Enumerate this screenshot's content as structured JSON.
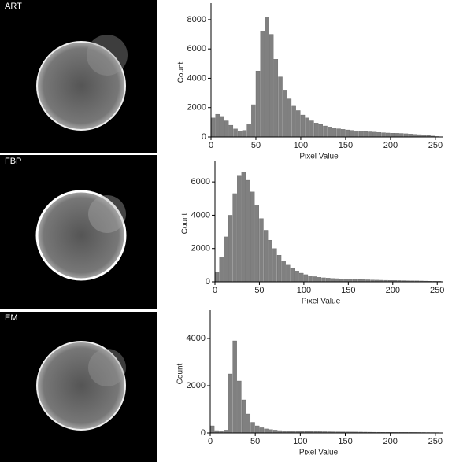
{
  "chart_data": [
    {
      "type": "histogram",
      "title": "ART",
      "xlabel": "Pixel Value",
      "ylabel": "Count",
      "color": "#808080",
      "bins": [
        0,
        5,
        10,
        15,
        20,
        25,
        30,
        35,
        40,
        45,
        50,
        55,
        60,
        65,
        70,
        75,
        80,
        85,
        90,
        95,
        100,
        105,
        110,
        115,
        120,
        125,
        130,
        135,
        140,
        145,
        150,
        155,
        160,
        165,
        170,
        175,
        180,
        185,
        190,
        195,
        200,
        205,
        210,
        215,
        220,
        225,
        230,
        235,
        240,
        245,
        250,
        255
      ],
      "values": [
        1300,
        1550,
        1400,
        1100,
        800,
        550,
        400,
        450,
        900,
        2200,
        4500,
        7200,
        8200,
        7000,
        5300,
        4100,
        3200,
        2600,
        2100,
        1800,
        1500,
        1300,
        1100,
        950,
        850,
        750,
        680,
        620,
        560,
        520,
        480,
        450,
        420,
        390,
        370,
        350,
        330,
        310,
        290,
        270,
        260,
        250,
        240,
        220,
        200,
        180,
        160,
        130,
        100,
        60,
        30
      ],
      "xlim": [
        0,
        258
      ],
      "xticks": [
        0,
        50,
        100,
        150,
        200,
        250
      ],
      "ylim": [
        0,
        8800
      ],
      "yticks": [
        0,
        2000,
        4000,
        6000,
        8000
      ]
    },
    {
      "type": "histogram",
      "title": "FBP",
      "xlabel": "Pixel Value",
      "ylabel": "Count",
      "color": "#808080",
      "bins": [
        0,
        5,
        10,
        15,
        20,
        25,
        30,
        35,
        40,
        45,
        50,
        55,
        60,
        65,
        70,
        75,
        80,
        85,
        90,
        95,
        100,
        105,
        110,
        115,
        120,
        125,
        130,
        135,
        140,
        145,
        150,
        155,
        160,
        165,
        170,
        175,
        180,
        185,
        190,
        195,
        200,
        205,
        210,
        215,
        220,
        225,
        230,
        235,
        240,
        245,
        250,
        255
      ],
      "values": [
        600,
        1500,
        2700,
        4000,
        5300,
        6400,
        6600,
        6100,
        5400,
        4600,
        3800,
        3100,
        2500,
        2000,
        1600,
        1250,
        1000,
        800,
        650,
        520,
        430,
        360,
        310,
        270,
        240,
        220,
        200,
        190,
        180,
        170,
        160,
        150,
        140,
        130,
        120,
        110,
        100,
        95,
        90,
        85,
        80,
        75,
        70,
        65,
        60,
        55,
        50,
        45,
        40,
        35,
        30
      ],
      "xlim": [
        0,
        256
      ],
      "xticks": [
        0,
        50,
        100,
        150,
        200,
        250
      ],
      "ylim": [
        0,
        7000
      ],
      "yticks": [
        0,
        2000,
        4000,
        6000
      ]
    },
    {
      "type": "histogram",
      "title": "EM",
      "xlabel": "Pixel Value",
      "ylabel": "Count",
      "color": "#808080",
      "bins": [
        0,
        5,
        10,
        15,
        20,
        25,
        30,
        35,
        40,
        45,
        50,
        55,
        60,
        65,
        70,
        75,
        80,
        85,
        90,
        95,
        100,
        105,
        110,
        115,
        120,
        125,
        130,
        135,
        140,
        145,
        150,
        155,
        160,
        165,
        170,
        175,
        180,
        185,
        190,
        195,
        200,
        205,
        210,
        215,
        220,
        225,
        230,
        235,
        240,
        245,
        250,
        255
      ],
      "values": [
        300,
        100,
        80,
        120,
        2500,
        3900,
        2200,
        1400,
        800,
        450,
        300,
        220,
        170,
        140,
        120,
        100,
        90,
        85,
        80,
        75,
        70,
        65,
        60,
        58,
        55,
        52,
        50,
        48,
        46,
        44,
        42,
        40,
        38,
        36,
        34,
        32,
        30,
        29,
        28,
        27,
        26,
        25,
        24,
        23,
        22,
        21,
        20,
        19,
        18,
        17,
        16
      ],
      "xlim": [
        0,
        258
      ],
      "xticks": [
        0,
        50,
        100,
        150,
        200,
        250
      ],
      "ylim": [
        0,
        5000
      ],
      "yticks": [
        0,
        2000,
        4000
      ]
    }
  ]
}
